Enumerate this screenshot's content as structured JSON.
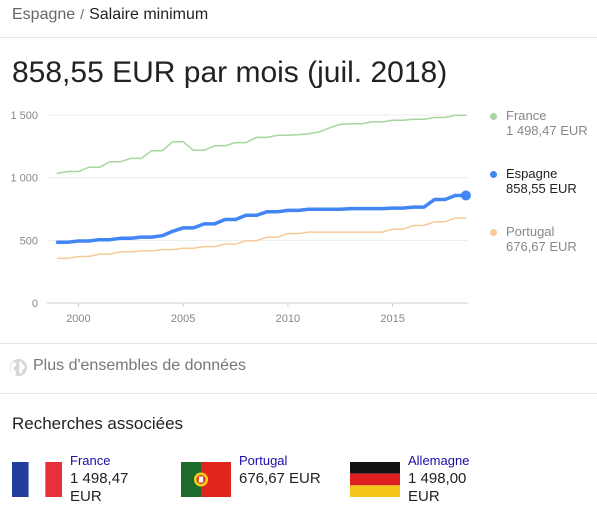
{
  "breadcrumb": {
    "parent": "Espagne",
    "separator": "/",
    "current": "Salaire minimum"
  },
  "headline": "858,55 EUR par mois (juil. 2018)",
  "chart_data": {
    "type": "line",
    "ylim": [
      0,
      1500
    ],
    "xlim": [
      1998.5,
      2018.6
    ],
    "grid": true,
    "y_ticks": [
      "0",
      "500",
      "1 000",
      "1 500"
    ],
    "x_ticks": [
      "2000",
      "2005",
      "2010",
      "2015"
    ],
    "legend_position": "right",
    "series": [
      {
        "name": "France",
        "display_value": "1 498,47 EUR",
        "color": "#a8d5a0",
        "x": [
          1999,
          1999.5,
          2000,
          2000.5,
          2001,
          2001.5,
          2002,
          2002.5,
          2003,
          2003.5,
          2004,
          2004.5,
          2005,
          2005.5,
          2006,
          2006.5,
          2007,
          2007.5,
          2008,
          2008.5,
          2009,
          2009.5,
          2010,
          2010.5,
          2011,
          2011.5,
          2012,
          2012.5,
          2013,
          2013.5,
          2014,
          2014.5,
          2015,
          2015.5,
          2016,
          2016.5,
          2017,
          2017.5,
          2018,
          2018.5
        ],
        "y": [
          1036,
          1049,
          1049,
          1083,
          1083,
          1127,
          1127,
          1154,
          1154,
          1215,
          1215,
          1286,
          1286,
          1218,
          1218,
          1254,
          1254,
          1280,
          1280,
          1321,
          1321,
          1338,
          1338,
          1343,
          1350,
          1365,
          1398,
          1425,
          1430,
          1430,
          1445,
          1445,
          1458,
          1458,
          1466,
          1466,
          1480,
          1480,
          1498,
          1498
        ]
      },
      {
        "name": "Espagne",
        "display_value": "858,55 EUR",
        "color": "#4285f4",
        "x": [
          1999,
          1999.5,
          2000,
          2000.5,
          2001,
          2001.5,
          2002,
          2002.5,
          2003,
          2003.5,
          2004,
          2004.5,
          2005,
          2005.5,
          2006,
          2006.5,
          2007,
          2007.5,
          2008,
          2008.5,
          2009,
          2009.5,
          2010,
          2010.5,
          2011,
          2011.5,
          2012,
          2012.5,
          2013,
          2013.5,
          2014,
          2014.5,
          2015,
          2015.5,
          2016,
          2016.5,
          2017,
          2017.5,
          2018,
          2018.5
        ],
        "y": [
          485,
          485,
          495,
          495,
          505,
          505,
          516,
          516,
          526,
          526,
          537,
          572,
          599,
          599,
          631,
          631,
          666,
          666,
          700,
          700,
          728,
          728,
          739,
          739,
          748,
          748,
          748,
          748,
          753,
          753,
          753,
          753,
          757,
          757,
          765,
          765,
          826,
          826,
          858,
          858
        ]
      },
      {
        "name": "Portugal",
        "display_value": "676,67 EUR",
        "color": "#f7c99a",
        "x": [
          1999,
          1999.5,
          2000,
          2000.5,
          2001,
          2001.5,
          2002,
          2002.5,
          2003,
          2003.5,
          2004,
          2004.5,
          2005,
          2005.5,
          2006,
          2006.5,
          2007,
          2007.5,
          2008,
          2008.5,
          2009,
          2009.5,
          2010,
          2010.5,
          2011,
          2011.5,
          2012,
          2012.5,
          2013,
          2013.5,
          2014,
          2014.5,
          2015,
          2015.5,
          2016,
          2016.5,
          2017,
          2017.5,
          2018,
          2018.5
        ],
        "y": [
          356,
          356,
          371,
          371,
          390,
          390,
          408,
          408,
          416,
          416,
          426,
          426,
          437,
          437,
          450,
          450,
          470,
          470,
          497,
          497,
          525,
          525,
          554,
          554,
          566,
          566,
          566,
          566,
          566,
          566,
          566,
          566,
          589,
          589,
          618,
          618,
          649,
          649,
          677,
          677
        ]
      }
    ]
  },
  "datasets": {
    "label": "Plus d'ensembles de données",
    "icon": "globe-icon"
  },
  "related": {
    "title": "Recherches associées",
    "items": [
      {
        "name": "France",
        "value": "1 498,47 EUR",
        "flag": "france-flag-icon"
      },
      {
        "name": "Portugal",
        "value": "676,67 EUR",
        "flag": "portugal-flag-icon"
      },
      {
        "name": "Allemagne",
        "value": "1 498,00 EUR",
        "flag": "germany-flag-icon"
      }
    ]
  }
}
